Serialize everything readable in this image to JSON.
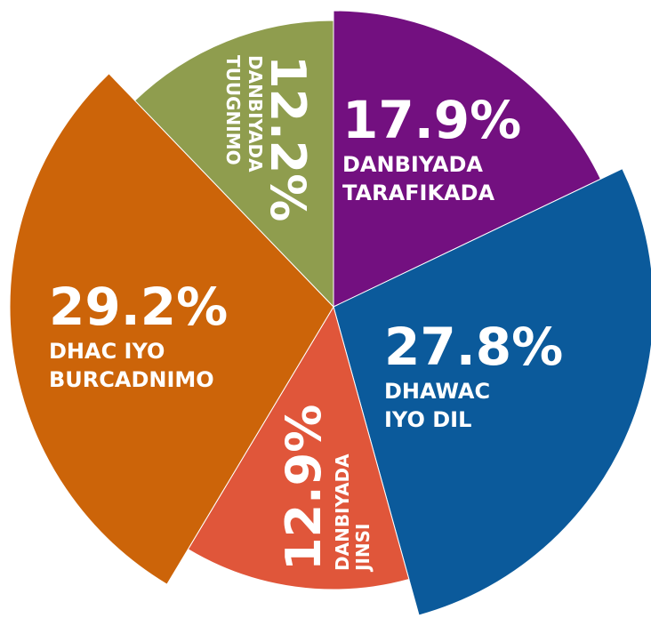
{
  "chart_data": {
    "type": "pie",
    "categories": [
      [
        "DANBIYADA",
        "TARAFIKADA"
      ],
      [
        "DHAWAC",
        "IYO DIL"
      ],
      [
        "DANBIYADA",
        "JINSI"
      ],
      [
        "DHAC IYO",
        "BURCADNIMO"
      ],
      [
        "DANBIYADA",
        "TUUGNIMO"
      ]
    ],
    "values": [
      17.9,
      27.8,
      12.9,
      29.2,
      12.2
    ],
    "value_labels": [
      "17.9%",
      "27.8%",
      "12.9%",
      "29.2%",
      "12.2%"
    ],
    "colors": [
      "#731080",
      "#0b5a9b",
      "#e0563a",
      "#cc6409",
      "#8f9d4e"
    ]
  }
}
